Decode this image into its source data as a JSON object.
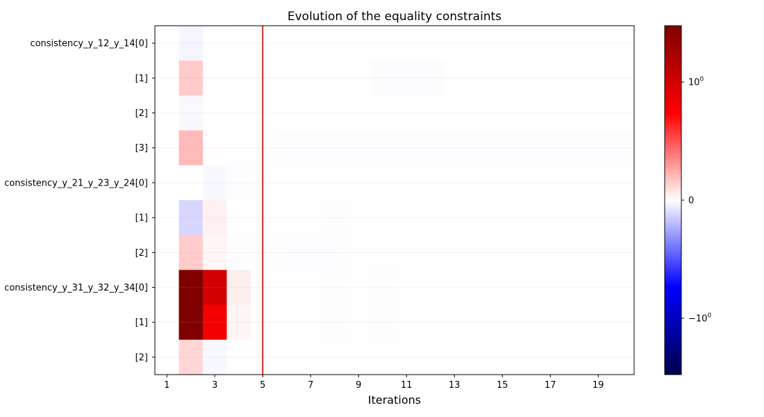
{
  "chart_data": {
    "type": "heatmap",
    "title": "Evolution of the equality constraints",
    "xlabel": "Iterations",
    "ylabel": "",
    "x_iterations": [
      1,
      2,
      3,
      4,
      5,
      6,
      7,
      8,
      9,
      10,
      11,
      12,
      13,
      14,
      15,
      16,
      17,
      18,
      19,
      20
    ],
    "x_tick_labels": [
      "1",
      "3",
      "5",
      "7",
      "9",
      "11",
      "13",
      "15",
      "17",
      "19"
    ],
    "y_labels": [
      "consistency_y_12_y_14[0]",
      "[1]",
      "[2]",
      "[3]",
      "consistency_y_21_y_23_y_24[0]",
      "[1]",
      "[2]",
      "consistency_y_31_y_32_y_34[0]",
      "[1]",
      "[2]"
    ],
    "values": [
      [
        0,
        -0.03,
        0.002,
        0.001,
        0.001,
        0.001,
        0.001,
        0.001,
        0.001,
        0.001,
        0.001,
        0.001,
        0.001,
        0.001,
        0.001,
        0.001,
        0.001,
        0.001,
        0.001,
        0.001
      ],
      [
        0,
        0.15,
        0.004,
        0.003,
        0.003,
        0.002,
        0.002,
        0.002,
        0.002,
        -0.01,
        -0.01,
        -0.01,
        0.002,
        0.002,
        0.002,
        0.002,
        0.002,
        0.002,
        0.002,
        0.002
      ],
      [
        0,
        -0.02,
        0.002,
        0.001,
        0.001,
        0.001,
        0.001,
        0.001,
        0.001,
        0.001,
        0.001,
        0.001,
        0.001,
        0.001,
        0.001,
        0.001,
        0.001,
        0.001,
        0.001,
        0.001
      ],
      [
        0,
        0.2,
        0.005,
        0.004,
        0.003,
        -0.005,
        -0.005,
        -0.005,
        -0.005,
        -0.005,
        -0.005,
        -0.005,
        -0.005,
        -0.005,
        -0.005,
        -0.005,
        -0.005,
        -0.005,
        -0.005,
        -0.005
      ],
      [
        0,
        0.003,
        -0.02,
        -0.005,
        -0.004,
        -0.003,
        -0.003,
        -0.003,
        -0.003,
        -0.003,
        -0.003,
        -0.003,
        -0.003,
        -0.003,
        -0.003,
        -0.003,
        -0.003,
        -0.003,
        -0.003,
        -0.003
      ],
      [
        0,
        -0.12,
        0.04,
        0.003,
        -0.004,
        -0.004,
        -0.004,
        -0.006,
        -0.003,
        -0.003,
        -0.003,
        -0.003,
        -0.003,
        -0.003,
        -0.003,
        -0.003,
        -0.003,
        -0.003,
        -0.003,
        -0.003
      ],
      [
        0,
        0.15,
        0.03,
        -0.005,
        -0.004,
        -0.006,
        -0.006,
        -0.006,
        -0.004,
        -0.004,
        -0.004,
        -0.004,
        -0.004,
        -0.004,
        -0.004,
        -0.004,
        -0.004,
        -0.004,
        -0.004,
        -0.004
      ],
      [
        0,
        3.0,
        1.0,
        0.05,
        0.004,
        -0.004,
        -0.004,
        -0.006,
        0.002,
        -0.006,
        0.002,
        0.002,
        0.002,
        0.002,
        0.002,
        0.002,
        0.002,
        0.002,
        0.002,
        0.002
      ],
      [
        0,
        3.0,
        0.8,
        0.03,
        0.004,
        -0.004,
        -0.004,
        -0.006,
        0.002,
        -0.006,
        0.002,
        0.002,
        0.002,
        0.002,
        0.002,
        0.002,
        0.002,
        0.002,
        0.002,
        0.002
      ],
      [
        0,
        0.12,
        -0.02,
        0.002,
        0.002,
        0.002,
        0.002,
        0.002,
        0.002,
        0.002,
        0.002,
        0.002,
        0.002,
        0.002,
        0.002,
        0.002,
        0.002,
        0.002,
        0.002,
        0.002
      ]
    ],
    "vline_iteration": 5,
    "vline_color": "#d62728",
    "colormap": "seismic",
    "scale": "symlog",
    "linthresh": 1,
    "clim": [
      -3,
      3
    ],
    "colorbar_ticks": [
      {
        "value": 1,
        "label": "10^0"
      },
      {
        "value": 0,
        "label": "0"
      },
      {
        "value": -1,
        "label": "-10^0"
      }
    ],
    "grid": true
  }
}
